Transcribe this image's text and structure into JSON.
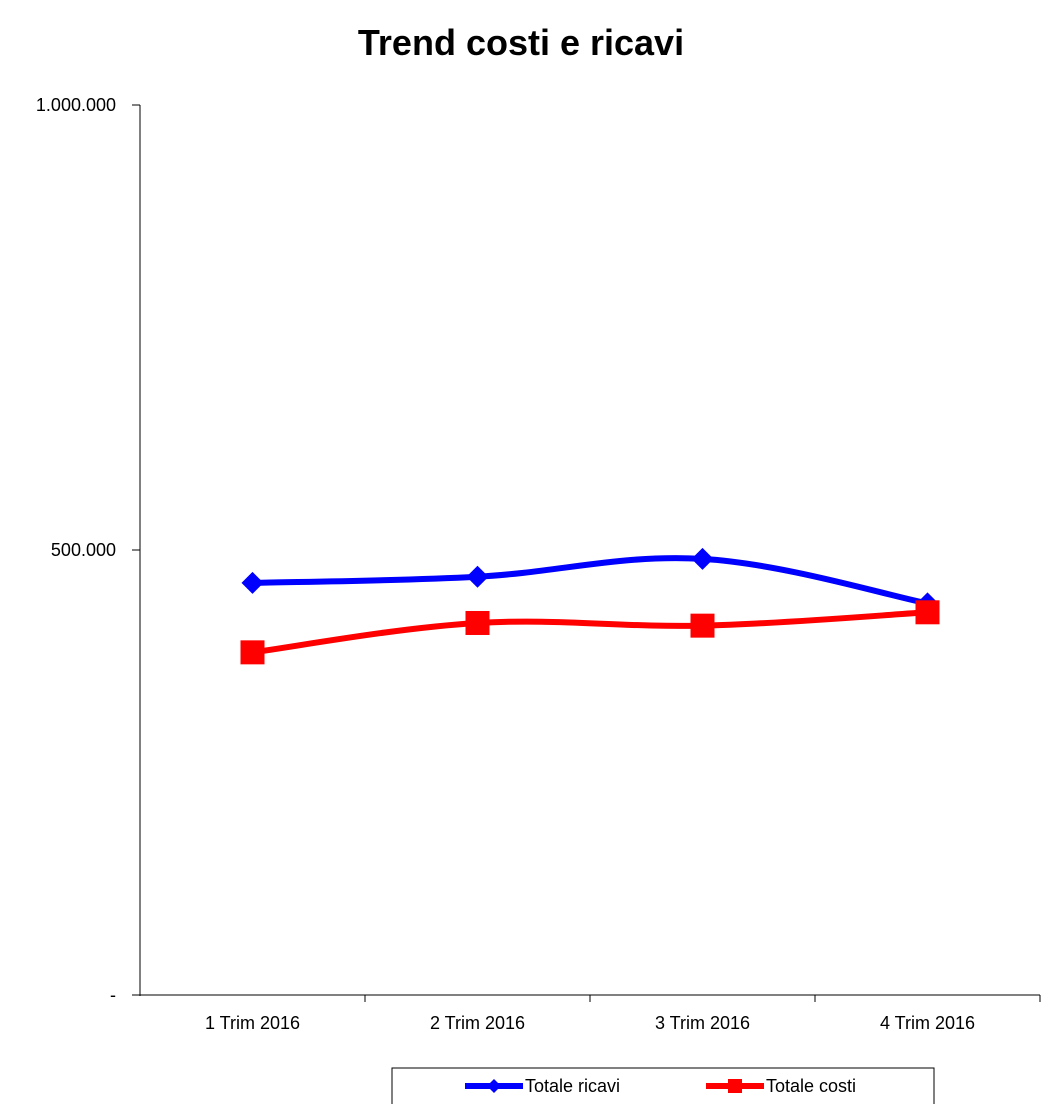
{
  "chart_data": {
    "type": "line",
    "title": "Trend costi e ricavi",
    "xlabel": "",
    "ylabel": "",
    "categories": [
      "1 Trim 2016",
      "2 Trim 2016",
      "3 Trim 2016",
      "4 Trim 2016"
    ],
    "y_tick_values": [
      0,
      500000,
      1000000
    ],
    "y_tick_labels": [
      "-",
      "500.000",
      "1.000.000"
    ],
    "ylim": [
      0,
      1000000
    ],
    "grid": false,
    "legend_position": "bottom",
    "smooth": true,
    "series": [
      {
        "name": "Totale ricavi",
        "values": [
          463000,
          470000,
          490000,
          440000
        ],
        "color": "#0000ff",
        "marker": "diamond"
      },
      {
        "name": "Totale costi",
        "values": [
          385000,
          418000,
          415000,
          430000
        ],
        "color": "#ff0000",
        "marker": "square"
      }
    ]
  }
}
